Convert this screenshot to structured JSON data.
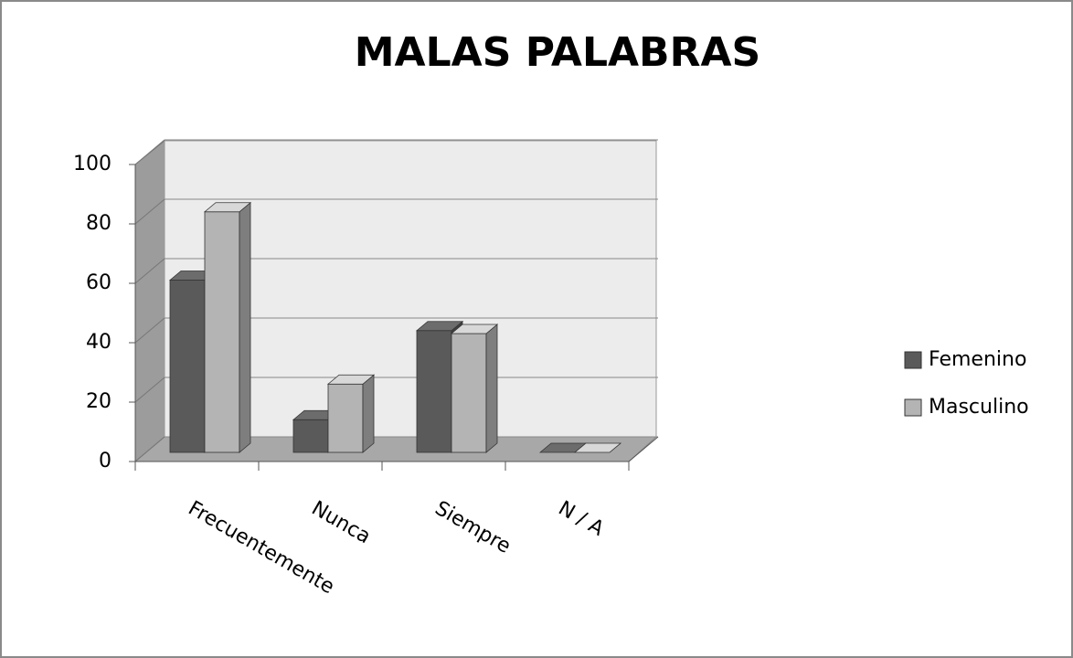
{
  "chart_data": {
    "type": "bar",
    "title": "MALAS PALABRAS",
    "categories": [
      "Frecuentemente",
      "Nunca",
      "Siempre",
      "N / A"
    ],
    "series": [
      {
        "name": "Femenino",
        "color": "#5a5a5a",
        "values": [
          58,
          11,
          41,
          0
        ]
      },
      {
        "name": "Masculino",
        "color": "#b4b4b4",
        "values": [
          81,
          23,
          40,
          0
        ]
      }
    ],
    "ylim": [
      0,
      100
    ],
    "yticks": [
      0,
      20,
      40,
      60,
      80,
      100
    ],
    "grid": true,
    "legend": "right"
  }
}
